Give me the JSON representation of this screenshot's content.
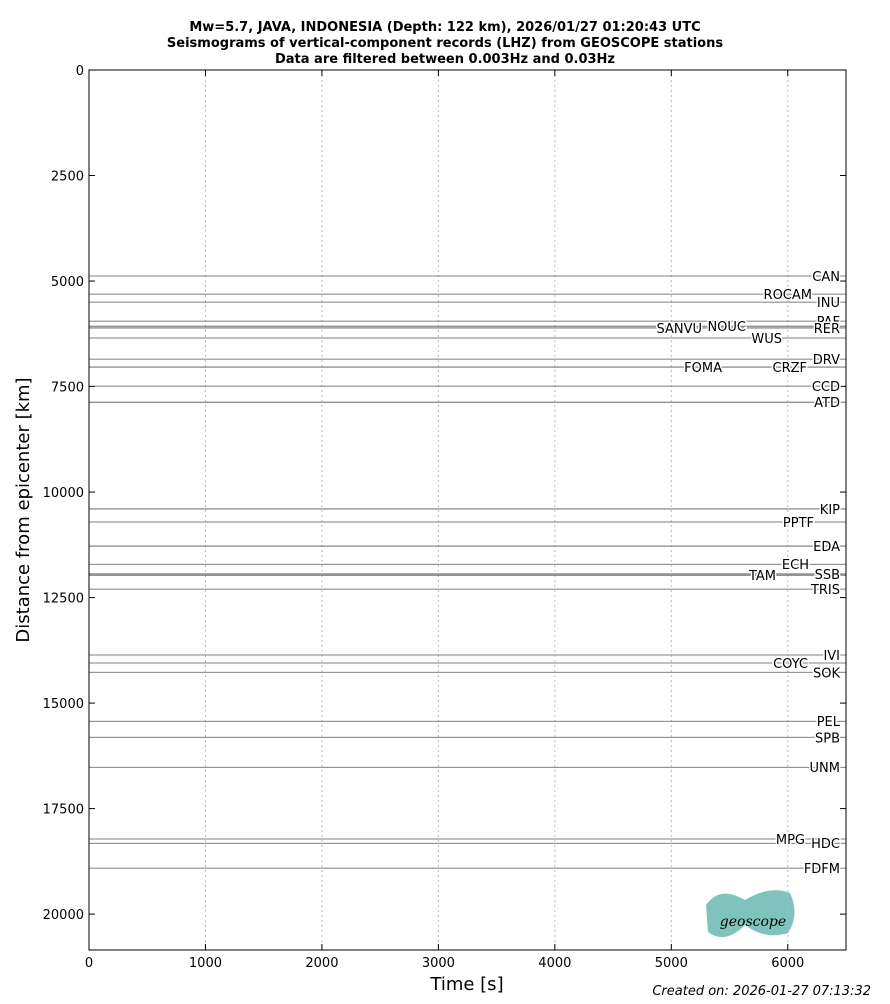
{
  "chart_data": {
    "type": "seismogram",
    "title": [
      "Mw=5.7, JAVA, INDONESIA (Depth: 122 km), 2026/01/27 01:20:43 UTC",
      "Seismograms of vertical-component records (LHZ) from GEOSCOPE stations",
      "Data are filtered between 0.003Hz and 0.03Hz"
    ],
    "x_label": "Time [s]",
    "y_label": "Distance from epicenter [km]",
    "xlim": [
      0,
      6500
    ],
    "ylim": [
      0,
      20850
    ],
    "y_inverted": true,
    "xticks": [
      0,
      1000,
      2000,
      3000,
      4000,
      5000,
      6000
    ],
    "yticks": [
      0,
      2500,
      5000,
      7500,
      10000,
      12500,
      15000,
      17500,
      20000
    ],
    "grid": true,
    "trace_color": "#555555",
    "stations": [
      "CAN",
      "ROCAM",
      "INU",
      "PAF",
      "RER",
      "NOUC",
      "SANVU",
      "WUS",
      "DRV",
      "CRZF",
      "FOMA",
      "CCD",
      "ATD",
      "KIP",
      "PPTF",
      "EDA",
      "ECH",
      "SSB",
      "TAM",
      "TRIS",
      "IVI",
      "COYC",
      "SOK",
      "PEL",
      "SPB",
      "UNM",
      "MPG",
      "HDC",
      "FDFM"
    ],
    "distances": [
      4880,
      5310,
      5500,
      5950,
      6110,
      6070,
      6110,
      6350,
      6850,
      7040,
      7040,
      7490,
      7870,
      10400,
      10710,
      11280,
      11710,
      11940,
      11970,
      12300,
      13860,
      14050,
      14270,
      15430,
      15810,
      16520,
      18220,
      18320,
      18910
    ],
    "footer": "Created on: 2026-01-27 07:13:32",
    "logo": "geoscope"
  }
}
